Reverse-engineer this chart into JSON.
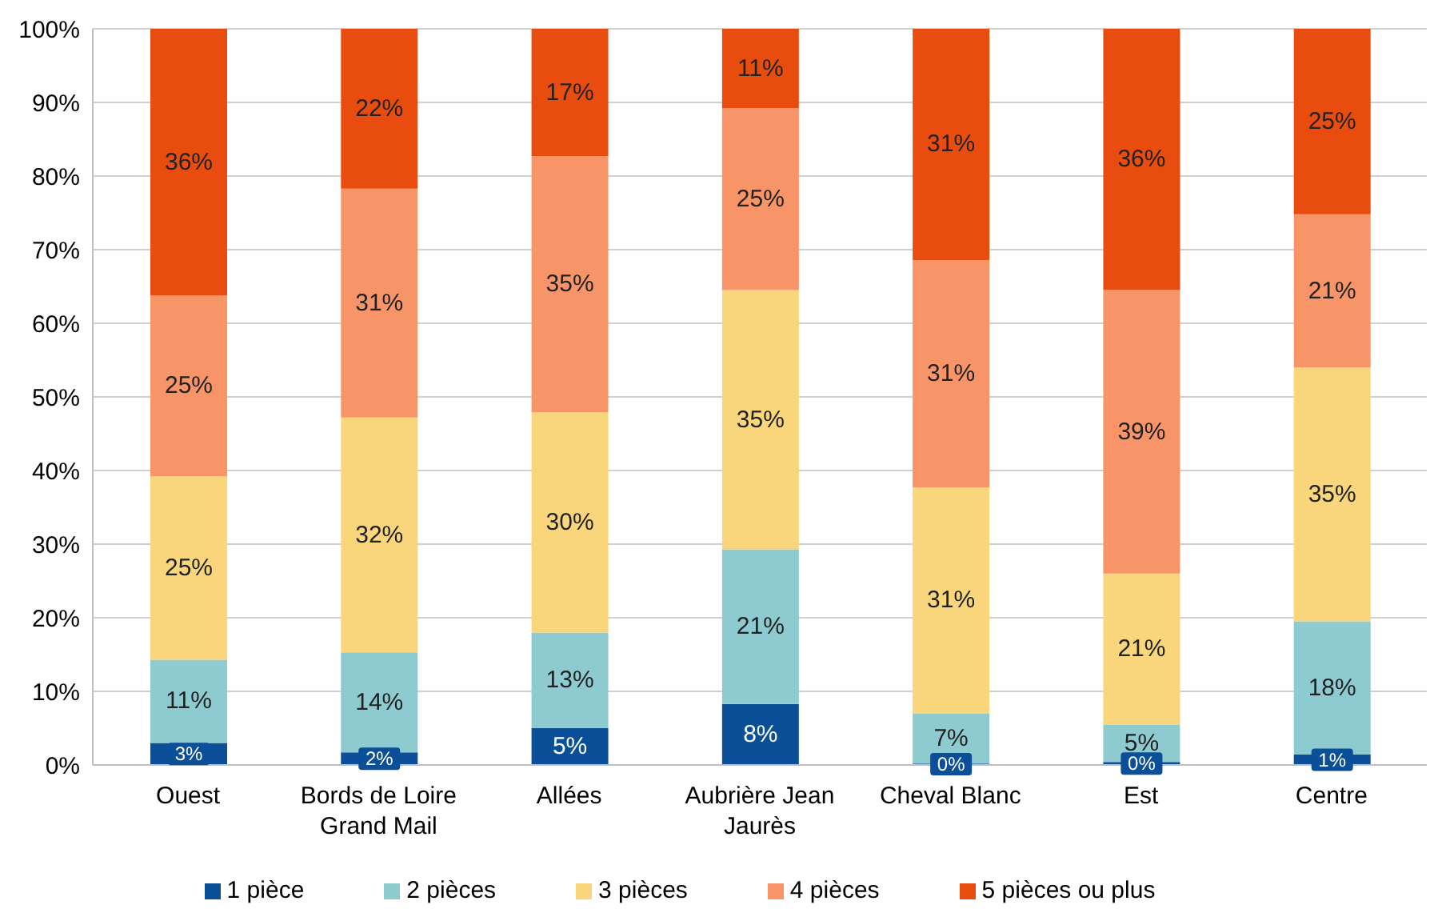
{
  "chart_data": {
    "type": "bar",
    "stacked": true,
    "categories": [
      "Ouest",
      "Bords de Loire Grand Mail",
      "Allées",
      "Aubrière Jean Jaurès",
      "Cheval Blanc",
      "Est",
      "Centre"
    ],
    "series": [
      {
        "name": "1 pièce",
        "color": "#0b4f98",
        "values": [
          3.0,
          1.7,
          5.0,
          8.3,
          0.2,
          0.4,
          1.4
        ],
        "value_labels": [
          "3%",
          "2%",
          "5%",
          "8%",
          "0%",
          "0%",
          "1%"
        ]
      },
      {
        "name": "2 pièces",
        "color": "#8ecbd1",
        "values": [
          11.3,
          13.6,
          13.0,
          21.0,
          6.8,
          5.1,
          18.1
        ],
        "value_labels": [
          "11%",
          "14%",
          "13%",
          "21%",
          "7%",
          "5%",
          "18%"
        ]
      },
      {
        "name": "3 pièces",
        "color": "#f9d67b",
        "values": [
          24.9,
          31.9,
          29.9,
          35.2,
          30.7,
          20.5,
          34.5
        ],
        "value_labels": [
          "25%",
          "32%",
          "30%",
          "35%",
          "31%",
          "21%",
          "35%"
        ]
      },
      {
        "name": "4 pièces",
        "color": "#f79468",
        "values": [
          24.6,
          31.1,
          34.8,
          24.7,
          30.9,
          38.5,
          20.8
        ],
        "value_labels": [
          "25%",
          "31%",
          "35%",
          "25%",
          "31%",
          "39%",
          "21%"
        ]
      },
      {
        "name": "5 pièces ou plus",
        "color": "#e84c0e",
        "values": [
          36.2,
          21.7,
          17.3,
          10.8,
          31.4,
          35.5,
          25.2
        ],
        "value_labels": [
          "36%",
          "22%",
          "17%",
          "11%",
          "31%",
          "36%",
          "25%"
        ]
      }
    ],
    "ylim": [
      0,
      100
    ],
    "yticks": [
      {
        "value": 0,
        "label": "0%"
      },
      {
        "value": 10,
        "label": "10%"
      },
      {
        "value": 20,
        "label": "20%"
      },
      {
        "value": 30,
        "label": "30%"
      },
      {
        "value": 40,
        "label": "40%"
      },
      {
        "value": 50,
        "label": "50%"
      },
      {
        "value": 60,
        "label": "60%"
      },
      {
        "value": 70,
        "label": "70%"
      },
      {
        "value": 80,
        "label": "80%"
      },
      {
        "value": 90,
        "label": "90%"
      },
      {
        "value": 100,
        "label": "100%"
      }
    ],
    "grid": "y",
    "legend": "bottom"
  }
}
